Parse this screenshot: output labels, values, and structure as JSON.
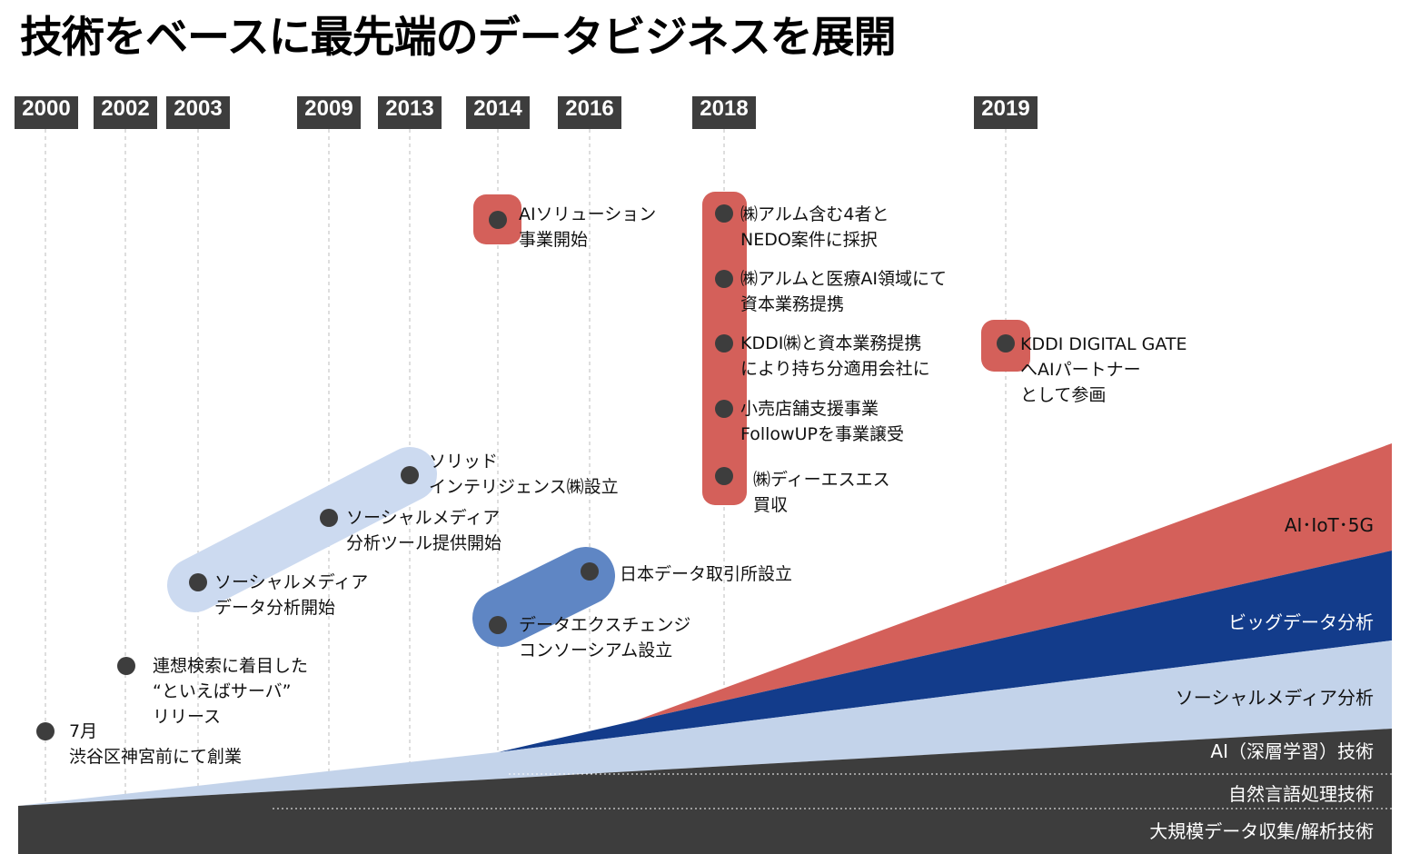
{
  "title": "技術をベースに最先端のデータビジネスを展開",
  "years": [
    "2000",
    "2002",
    "2003",
    "2009",
    "2013",
    "2014",
    "2016",
    "2018",
    "2019"
  ],
  "events": [
    {
      "l1": "7月",
      "l2": "渋谷区神宮前にて創業"
    },
    {
      "l1": "連想検索に着目した",
      "l2": "“といえばサーバ”",
      "l3": "リリース"
    },
    {
      "l1": "ソーシャルメディア",
      "l2": "データ分析開始"
    },
    {
      "l1": "ソーシャルメディア",
      "l2": "分析ツール提供開始"
    },
    {
      "l1": "ソリッド",
      "l2": "インテリジェンス㈱設立"
    },
    {
      "l1": "AIソリューション",
      "l2": "事業開始"
    },
    {
      "l1": "データエクスチェンジ",
      "l2": "コンソーシアム設立"
    },
    {
      "l1": "日本データ取引所設立"
    },
    {
      "l1": "㈱アルム含む4者と",
      "l2": "NEDO案件に採択"
    },
    {
      "l1": "㈱アルムと医療AI領域にて",
      "l2": "資本業務提携"
    },
    {
      "l1": "KDDI㈱と資本業務提携",
      "l2": "により持ち分適用会社に"
    },
    {
      "l1": "小売店舗支援事業",
      "l2": "FollowUPを事業譲受"
    },
    {
      "l1": "㈱ディーエスエス",
      "l2": "買収"
    },
    {
      "l1": "KDDI DIGITAL GATE",
      "l2": "へAIパートナー",
      "l3": "として参画"
    }
  ],
  "bands": [
    {
      "label": "AI･IoT･5G",
      "color": "#d4605a"
    },
    {
      "label": "ビッグデータ分析",
      "color": "#133c8b"
    },
    {
      "label": "ソーシャルメディア分析",
      "color": "#c3d3ea"
    },
    {
      "label": "AI（深層学習）技術",
      "color": "#3d3d3d"
    },
    {
      "label": "自然言語処理技術",
      "color": "#3d3d3d"
    },
    {
      "label": "大規模データ収集/解析技術",
      "color": "#3d3d3d"
    }
  ],
  "colors": {
    "highlight_red": "#d4605a",
    "highlight_light_blue": "#ccdaf0",
    "highlight_mid_blue": "#5f86c4",
    "dot": "#3d3d3d",
    "year_bg": "#3d3d3d"
  }
}
